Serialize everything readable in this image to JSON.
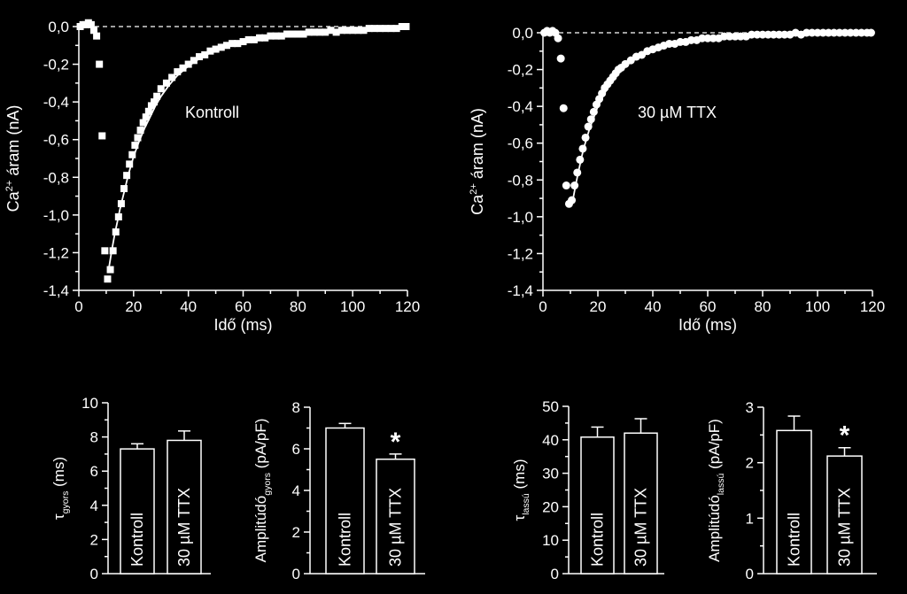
{
  "colors": {
    "background": "#000000",
    "foreground": "#ffffff"
  },
  "chart_data": [
    {
      "type": "scatter",
      "marker": "square",
      "xlabel": "Idő (ms)",
      "ylabel_main": "Ca",
      "ylabel_sup": "2+",
      "ylabel_rest": " áram (nA)",
      "annotation": "Kontroll",
      "xlim": [
        0,
        120
      ],
      "ylim": [
        -1.4,
        0.0
      ],
      "xticks": [
        "0",
        "20",
        "40",
        "60",
        "80",
        "100",
        "120"
      ],
      "yticks": [
        "0,0",
        "-0,2",
        "-0,4",
        "-0,6",
        "-0,8",
        "-1,0",
        "-1,2",
        "-1,4"
      ],
      "points": {
        "x": [
          0.5,
          1.5,
          2.5,
          3.5,
          4.5,
          5.5,
          6.5,
          7.5,
          8.5,
          9.5,
          10.5,
          11.5,
          12.5,
          13.5,
          14.5,
          15.5,
          16.5,
          17.5,
          18.5,
          19.5,
          20.5,
          21.5,
          22.5,
          23.5,
          24.5,
          25.5,
          26.5,
          27.5,
          28.5,
          30,
          32,
          34,
          36,
          38,
          40,
          42,
          44,
          46,
          48,
          50,
          52,
          54,
          56,
          58,
          60,
          62,
          64,
          66,
          68,
          70,
          72,
          74,
          76,
          78,
          80,
          82,
          84,
          86,
          88,
          90,
          92,
          94,
          96,
          98,
          100,
          102,
          104,
          106,
          108,
          110,
          112,
          114,
          116,
          118,
          119.5
        ],
        "y": [
          0.0,
          0.01,
          0.01,
          0.02,
          0.01,
          -0.02,
          -0.05,
          -0.2,
          -0.58,
          -1.19,
          -1.34,
          -1.29,
          -1.19,
          -1.09,
          -1.01,
          -0.94,
          -0.86,
          -0.79,
          -0.73,
          -0.68,
          -0.63,
          -0.59,
          -0.55,
          -0.51,
          -0.48,
          -0.45,
          -0.42,
          -0.4,
          -0.37,
          -0.33,
          -0.3,
          -0.27,
          -0.24,
          -0.22,
          -0.2,
          -0.18,
          -0.16,
          -0.15,
          -0.13,
          -0.12,
          -0.11,
          -0.1,
          -0.09,
          -0.09,
          -0.08,
          -0.07,
          -0.07,
          -0.06,
          -0.06,
          -0.05,
          -0.05,
          -0.05,
          -0.04,
          -0.04,
          -0.04,
          -0.04,
          -0.03,
          -0.03,
          -0.03,
          -0.03,
          -0.02,
          -0.03,
          -0.02,
          -0.02,
          -0.02,
          -0.02,
          -0.02,
          -0.01,
          -0.01,
          -0.01,
          -0.01,
          -0.01,
          -0.01,
          0.0,
          0.0
        ]
      },
      "fit": {
        "x": [
          11,
          12,
          13,
          14,
          15,
          16,
          17,
          18,
          19,
          20,
          22,
          24,
          26,
          28,
          30,
          33,
          36,
          40,
          44,
          48,
          52,
          56,
          60,
          65,
          70,
          75,
          80,
          85,
          90,
          95,
          100,
          105,
          110,
          115,
          120
        ],
        "y": [
          -1.28,
          -1.19,
          -1.11,
          -1.04,
          -0.97,
          -0.91,
          -0.85,
          -0.79,
          -0.74,
          -0.69,
          -0.61,
          -0.54,
          -0.48,
          -0.42,
          -0.37,
          -0.31,
          -0.26,
          -0.21,
          -0.17,
          -0.14,
          -0.12,
          -0.1,
          -0.08,
          -0.065,
          -0.05,
          -0.04,
          -0.033,
          -0.027,
          -0.021,
          -0.017,
          -0.013,
          -0.01,
          -0.008,
          -0.006,
          -0.004
        ]
      },
      "zero_line": true
    },
    {
      "type": "scatter",
      "marker": "circle",
      "xlabel": "Idő (ms)",
      "ylabel_main": "Ca",
      "ylabel_sup": "2+",
      "ylabel_rest": " áram (nA)",
      "annotation": "30 µM TTX",
      "xlim": [
        0,
        120
      ],
      "ylim": [
        -1.4,
        0.0
      ],
      "xticks": [
        "0",
        "20",
        "40",
        "60",
        "80",
        "100",
        "120"
      ],
      "yticks": [
        "0,0",
        "-0,2",
        "-0,4",
        "-0,6",
        "-0,8",
        "-1,0",
        "-1,2",
        "-1,4"
      ],
      "points": {
        "x": [
          0.5,
          1.5,
          2.5,
          3.5,
          4.5,
          5.5,
          6.5,
          7.5,
          8.5,
          9.5,
          10.5,
          11.5,
          12.5,
          13.5,
          14.5,
          15.5,
          16.5,
          17.5,
          18.5,
          19.5,
          20.5,
          21.5,
          22.5,
          23.5,
          24.5,
          25.5,
          26.5,
          27.5,
          28.5,
          30,
          32,
          34,
          36,
          38,
          40,
          42,
          44,
          46,
          48,
          50,
          52,
          54,
          56,
          58,
          60,
          62,
          64,
          66,
          68,
          70,
          72,
          74,
          76,
          78,
          80,
          82,
          84,
          86,
          88,
          90,
          92,
          94,
          96,
          98,
          100,
          102,
          104,
          106,
          108,
          110,
          112,
          114,
          116,
          118,
          119.5
        ],
        "y": [
          0.0,
          0.01,
          0.0,
          0.01,
          0.0,
          -0.03,
          -0.14,
          -0.41,
          -0.83,
          -0.93,
          -0.91,
          -0.83,
          -0.76,
          -0.69,
          -0.63,
          -0.57,
          -0.51,
          -0.47,
          -0.43,
          -0.39,
          -0.36,
          -0.33,
          -0.3,
          -0.28,
          -0.26,
          -0.24,
          -0.22,
          -0.2,
          -0.19,
          -0.17,
          -0.15,
          -0.13,
          -0.12,
          -0.1,
          -0.09,
          -0.08,
          -0.07,
          -0.06,
          -0.06,
          -0.05,
          -0.05,
          -0.04,
          -0.04,
          -0.03,
          -0.03,
          -0.03,
          -0.03,
          -0.02,
          -0.02,
          -0.02,
          -0.02,
          -0.02,
          -0.01,
          -0.01,
          -0.01,
          -0.01,
          -0.01,
          -0.01,
          -0.01,
          -0.01,
          0.0,
          -0.01,
          0.0,
          0.0,
          0.0,
          0.0,
          0.0,
          0.0,
          0.0,
          0.0,
          0.0,
          0.0,
          0.0,
          0.0,
          0.0
        ]
      },
      "fit": {
        "x": [
          11,
          12,
          13,
          14,
          15,
          16,
          17,
          18,
          19,
          20,
          22,
          24,
          26,
          28,
          30,
          33,
          36,
          40,
          44,
          48,
          52,
          56,
          60,
          65,
          70,
          75,
          80,
          85,
          90,
          95,
          100,
          105,
          110,
          115,
          120
        ],
        "y": [
          -0.9,
          -0.82,
          -0.75,
          -0.68,
          -0.62,
          -0.57,
          -0.52,
          -0.48,
          -0.44,
          -0.4,
          -0.34,
          -0.29,
          -0.25,
          -0.21,
          -0.18,
          -0.15,
          -0.12,
          -0.09,
          -0.07,
          -0.055,
          -0.045,
          -0.036,
          -0.029,
          -0.022,
          -0.017,
          -0.013,
          -0.01,
          -0.008,
          -0.006,
          -0.005,
          -0.004,
          -0.003,
          -0.002,
          -0.002,
          -0.001
        ]
      },
      "zero_line": true
    },
    {
      "type": "bar",
      "ylabel_main": "τ",
      "ylabel_sub": "gyors",
      "ylabel_rest": " (ms)",
      "ylim": [
        0,
        10
      ],
      "yticks": [
        "0",
        "2",
        "4",
        "6",
        "8",
        "10"
      ],
      "categories": [
        "Kontroll",
        "30 µM TTX"
      ],
      "values": [
        7.3,
        7.8
      ],
      "errors": [
        0.3,
        0.55
      ],
      "significance": [
        "",
        ""
      ]
    },
    {
      "type": "bar",
      "ylabel_main": "Amplitúdó",
      "ylabel_sub": "gyors",
      "ylabel_rest": " (pA/pF)",
      "ylim": [
        0,
        8
      ],
      "yticks": [
        "0",
        "2",
        "4",
        "6",
        "8"
      ],
      "categories": [
        "Kontroll",
        "30 µM TTX"
      ],
      "values": [
        7.0,
        5.5
      ],
      "errors": [
        0.22,
        0.25
      ],
      "significance": [
        "",
        "*"
      ]
    },
    {
      "type": "bar",
      "ylabel_main": "τ",
      "ylabel_sub": "lassú",
      "ylabel_rest": " (ms)",
      "ylim": [
        0,
        50
      ],
      "yticks": [
        "0",
        "10",
        "20",
        "30",
        "40",
        "50"
      ],
      "categories": [
        "Kontroll",
        "30 µM TTX"
      ],
      "values": [
        40.8,
        42.0
      ],
      "errors": [
        3.0,
        4.3
      ],
      "significance": [
        "",
        ""
      ]
    },
    {
      "type": "bar",
      "ylabel_main": "Amplitúdó",
      "ylabel_sub": "lassú",
      "ylabel_rest": " (pA/pF)",
      "ylim": [
        0,
        3
      ],
      "yticks": [
        "0",
        "1",
        "2",
        "3"
      ],
      "categories": [
        "Kontroll",
        "30 µM TTX"
      ],
      "values": [
        2.58,
        2.12
      ],
      "errors": [
        0.26,
        0.15
      ],
      "significance": [
        "",
        "*"
      ]
    }
  ]
}
